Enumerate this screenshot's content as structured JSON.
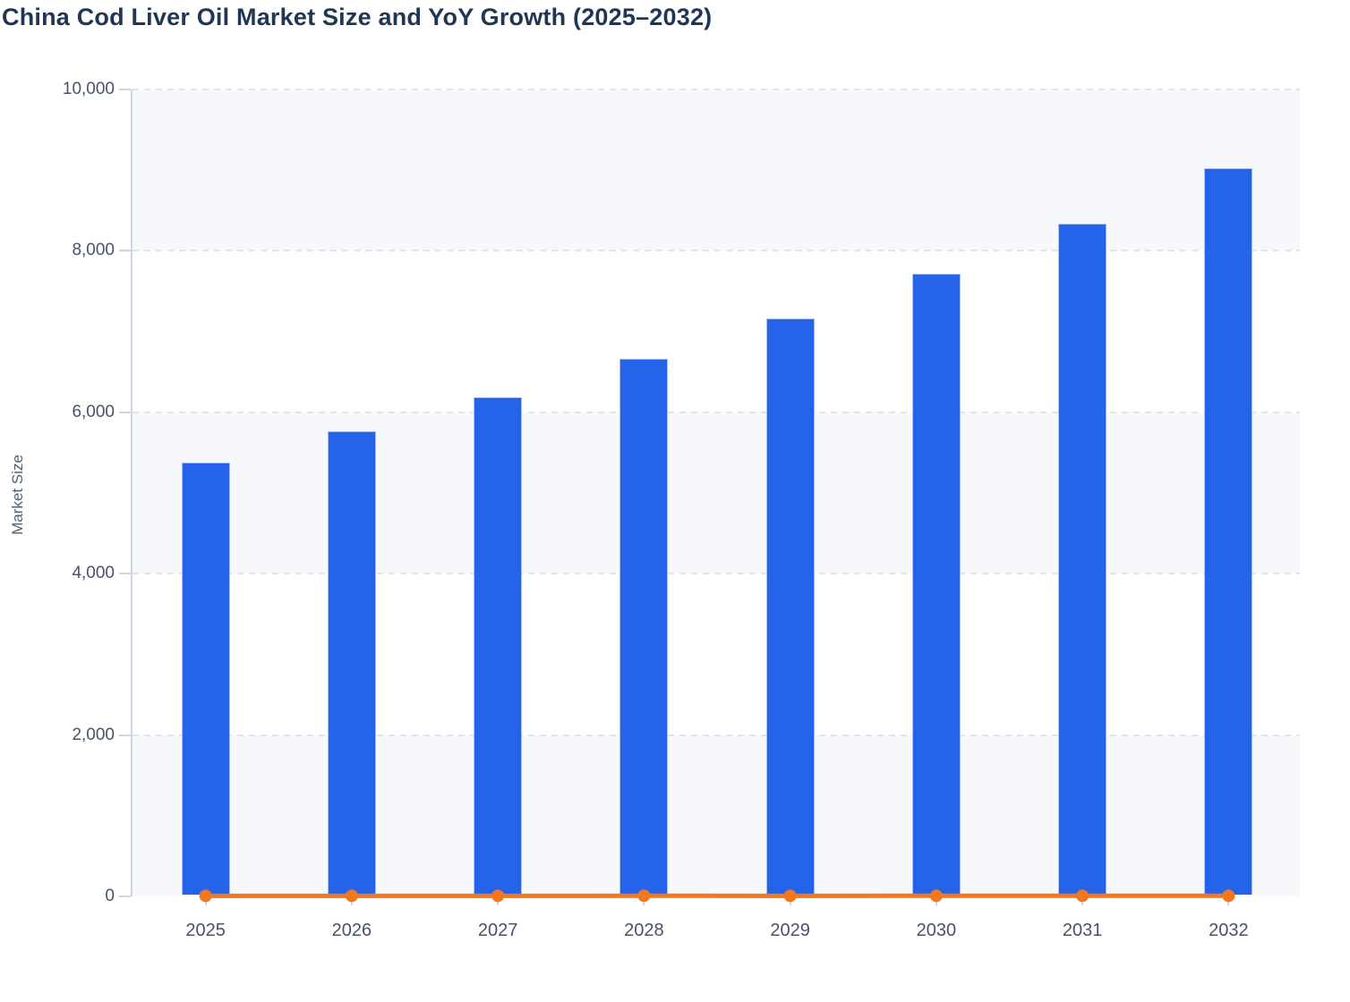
{
  "title": "China Cod Liver Oil Market Size and YoY Growth (2025–2032)",
  "y_axis": {
    "label": "Market Size",
    "min": 0,
    "max": 10000,
    "ticks": [
      {
        "label": "0",
        "value": 0
      },
      {
        "label": "2,000",
        "value": 2000
      },
      {
        "label": "4,000",
        "value": 4000
      },
      {
        "label": "6,000",
        "value": 6000
      },
      {
        "label": "8,000",
        "value": 8000
      },
      {
        "label": "10,000",
        "value": 10000
      }
    ]
  },
  "x_axis": {
    "categories": [
      "2025",
      "2026",
      "2027",
      "2028",
      "2029",
      "2030",
      "2031",
      "2032"
    ]
  },
  "chart_data": {
    "type": "bar",
    "title": "China Cod Liver Oil Market Size and YoY Growth (2025–2032)",
    "xlabel": "",
    "ylabel": "Market Size",
    "ylim": [
      0,
      10000
    ],
    "grid": "dashed-horizontal",
    "legend": "none",
    "categories": [
      "2025",
      "2026",
      "2027",
      "2028",
      "2029",
      "2030",
      "2031",
      "2032"
    ],
    "series": [
      {
        "name": "Market Size",
        "type": "bar",
        "color": "#2563eb",
        "values": [
          5350,
          5740,
          6160,
          6640,
          7140,
          7690,
          8310,
          9000
        ]
      },
      {
        "name": "YoY Growth",
        "type": "line",
        "color": "#f4771b",
        "values": [
          7.4,
          7.3,
          7.3,
          7.8,
          7.5,
          7.7,
          8.1,
          8.3
        ]
      }
    ]
  },
  "colors": {
    "bar": "#2563eb",
    "bar_border": "#b8cbf2",
    "line": "#f4771b",
    "title_text": "#1f3655",
    "axis_text": "#47536b",
    "axis_title_text": "#51606f",
    "axis_line": "#ccd4e8",
    "gridline": "#e1e4ea",
    "band": "#f7f8fb",
    "background": "#ffffff"
  }
}
